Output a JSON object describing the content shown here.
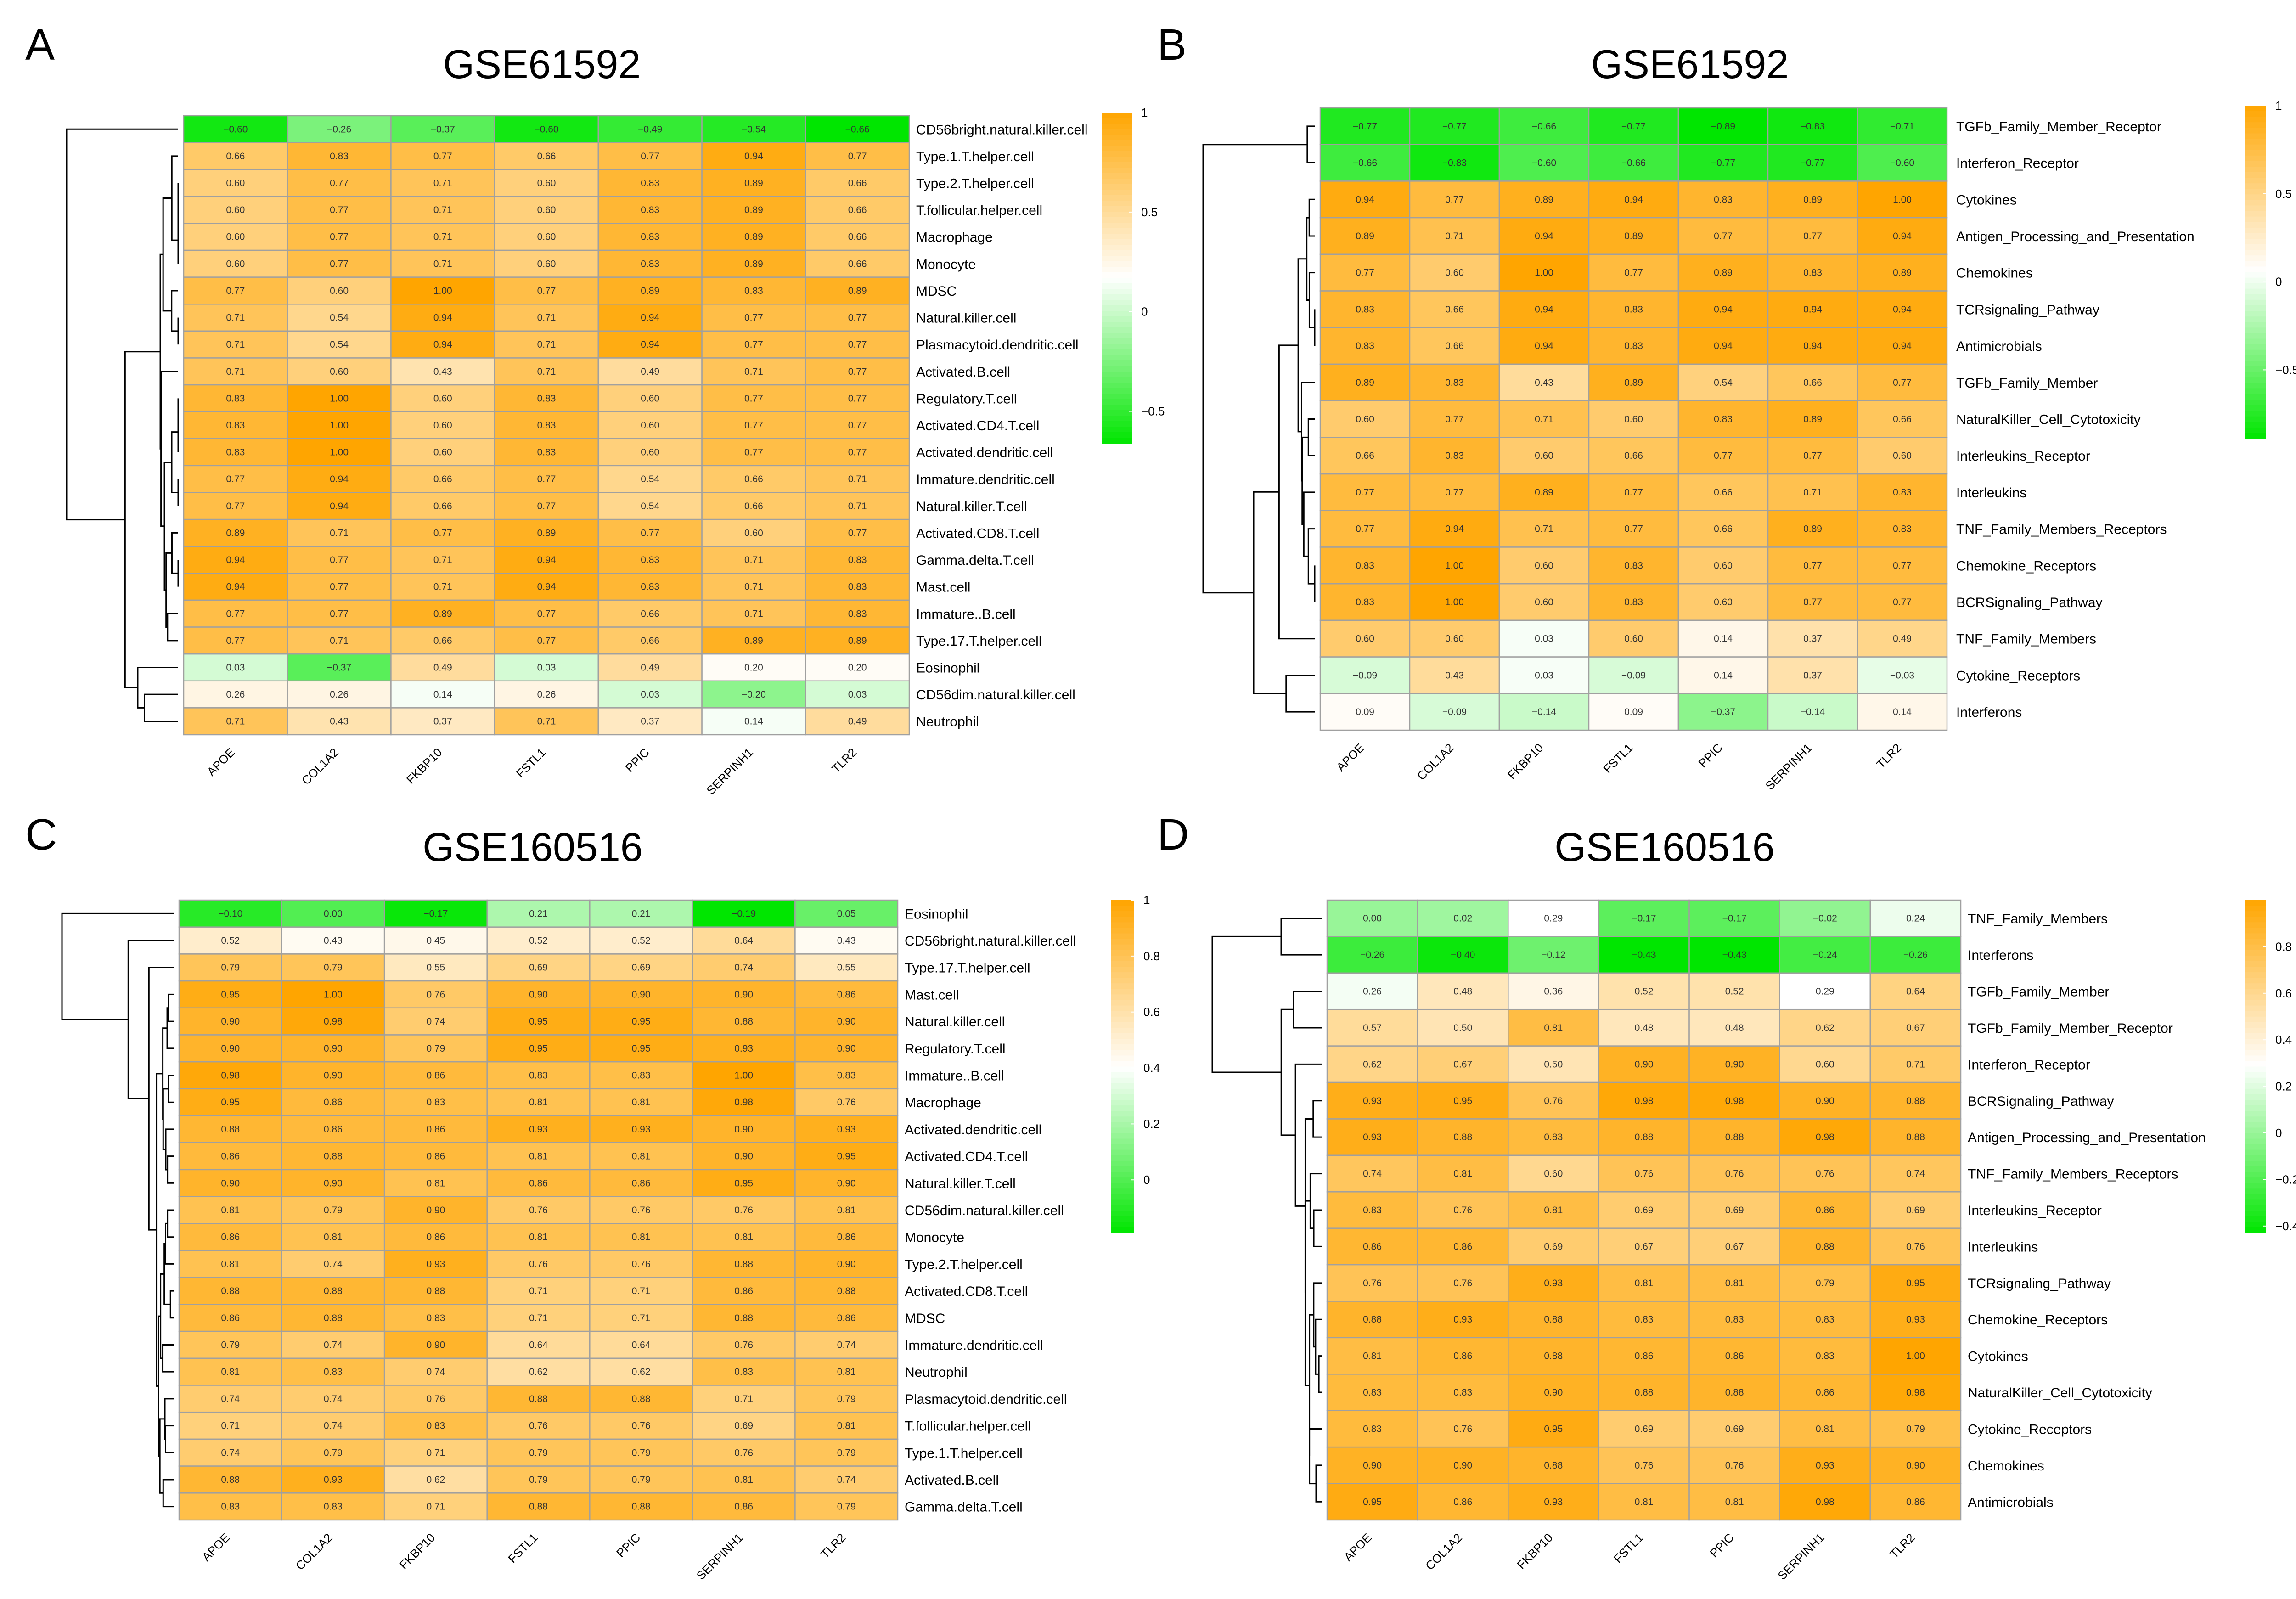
{
  "figure": {
    "panels_order": [
      "A",
      "B",
      "C",
      "D"
    ]
  },
  "colors": {
    "green": "#00e600",
    "white": "#ffffff",
    "orange": "#ffa500",
    "grid": "#a0a0a0",
    "dendrogram": "#000000",
    "text": "#000000"
  },
  "chart_data": [
    {
      "type": "heatmap",
      "panel_label": "A",
      "title": "GSE61592",
      "columns": [
        "APOE",
        "COL1A2",
        "FKBP10",
        "FSTL1",
        "PPIC",
        "SERPINH1",
        "TLR2"
      ],
      "rows": [
        "CD56bright.natural.killer.cell",
        "Type.1.T.helper.cell",
        "Type.2.T.helper.cell",
        "T.follicular.helper.cell",
        "Macrophage",
        "Monocyte",
        "MDSC",
        "Natural.killer.cell",
        "Plasmacytoid.dendritic.cell",
        "Activated.B.cell",
        "Regulatory.T.cell",
        "Activated.CD4.T.cell",
        "Activated.dendritic.cell",
        "Immature.dendritic.cell",
        "Natural.killer.T.cell",
        "Activated.CD8.T.cell",
        "Gamma.delta.T.cell",
        "Mast.cell",
        "Immature..B.cell",
        "Type.17.T.helper.cell",
        "Eosinophil",
        "CD56dim.natural.killer.cell",
        "Neutrophil"
      ],
      "values": [
        [
          -0.6,
          -0.26,
          -0.37,
          -0.6,
          -0.49,
          -0.54,
          -0.66
        ],
        [
          0.66,
          0.83,
          0.77,
          0.66,
          0.77,
          0.94,
          0.77
        ],
        [
          0.6,
          0.77,
          0.71,
          0.6,
          0.83,
          0.89,
          0.66
        ],
        [
          0.6,
          0.77,
          0.71,
          0.6,
          0.83,
          0.89,
          0.66
        ],
        [
          0.6,
          0.77,
          0.71,
          0.6,
          0.83,
          0.89,
          0.66
        ],
        [
          0.6,
          0.77,
          0.71,
          0.6,
          0.83,
          0.89,
          0.66
        ],
        [
          0.77,
          0.6,
          1.0,
          0.77,
          0.89,
          0.83,
          0.89
        ],
        [
          0.71,
          0.54,
          0.94,
          0.71,
          0.94,
          0.77,
          0.77
        ],
        [
          0.71,
          0.54,
          0.94,
          0.71,
          0.94,
          0.77,
          0.77
        ],
        [
          0.71,
          0.6,
          0.43,
          0.71,
          0.49,
          0.71,
          0.77
        ],
        [
          0.83,
          1.0,
          0.6,
          0.83,
          0.6,
          0.77,
          0.77
        ],
        [
          0.83,
          1.0,
          0.6,
          0.83,
          0.6,
          0.77,
          0.77
        ],
        [
          0.83,
          1.0,
          0.6,
          0.83,
          0.6,
          0.77,
          0.77
        ],
        [
          0.77,
          0.94,
          0.66,
          0.77,
          0.54,
          0.66,
          0.71
        ],
        [
          0.77,
          0.94,
          0.66,
          0.77,
          0.54,
          0.66,
          0.71
        ],
        [
          0.89,
          0.71,
          0.77,
          0.89,
          0.77,
          0.6,
          0.77
        ],
        [
          0.94,
          0.77,
          0.71,
          0.94,
          0.83,
          0.71,
          0.83
        ],
        [
          0.94,
          0.77,
          0.71,
          0.94,
          0.83,
          0.71,
          0.83
        ],
        [
          0.77,
          0.77,
          0.89,
          0.77,
          0.66,
          0.71,
          0.83
        ],
        [
          0.77,
          0.71,
          0.66,
          0.77,
          0.66,
          0.89,
          0.89
        ],
        [
          0.03,
          -0.37,
          0.49,
          0.03,
          0.49,
          0.2,
          0.2
        ],
        [
          0.26,
          0.26,
          0.14,
          0.26,
          0.03,
          -0.2,
          0.03
        ],
        [
          0.71,
          0.43,
          0.37,
          0.71,
          0.37,
          0.14,
          0.49
        ]
      ],
      "color_scale": {
        "min": -0.66,
        "mid": 0.17,
        "max": 1.0
      },
      "colorbar": {
        "ticks": [
          1,
          0.5,
          0,
          -0.5
        ],
        "labels": [
          "1",
          "0.5",
          "0",
          "−0.5"
        ]
      }
    },
    {
      "type": "heatmap",
      "panel_label": "B",
      "title": "GSE61592",
      "columns": [
        "APOE",
        "COL1A2",
        "FKBP10",
        "FSTL1",
        "PPIC",
        "SERPINH1",
        "TLR2"
      ],
      "rows": [
        "TGFb_Family_Member_Receptor",
        "Interferon_Receptor",
        "Cytokines",
        "Antigen_Processing_and_Presentation",
        "Chemokines",
        "TCRsignaling_Pathway",
        "Antimicrobials",
        "TGFb_Family_Member",
        "NaturalKiller_Cell_Cytotoxicity",
        "Interleukins_Receptor",
        "Interleukins",
        "TNF_Family_Members_Receptors",
        "Chemokine_Receptors",
        "BCRSignaling_Pathway",
        "TNF_Family_Members",
        "Cytokine_Receptors",
        "Interferons"
      ],
      "values": [
        [
          -0.77,
          -0.77,
          -0.66,
          -0.77,
          -0.89,
          -0.83,
          -0.71
        ],
        [
          -0.66,
          -0.83,
          -0.6,
          -0.66,
          -0.77,
          -0.77,
          -0.6
        ],
        [
          0.94,
          0.77,
          0.89,
          0.94,
          0.83,
          0.89,
          1.0
        ],
        [
          0.89,
          0.71,
          0.94,
          0.89,
          0.77,
          0.77,
          0.94
        ],
        [
          0.77,
          0.6,
          1.0,
          0.77,
          0.89,
          0.83,
          0.89
        ],
        [
          0.83,
          0.66,
          0.94,
          0.83,
          0.94,
          0.94,
          0.94
        ],
        [
          0.83,
          0.66,
          0.94,
          0.83,
          0.94,
          0.94,
          0.94
        ],
        [
          0.89,
          0.83,
          0.43,
          0.89,
          0.54,
          0.66,
          0.77
        ],
        [
          0.6,
          0.77,
          0.71,
          0.6,
          0.83,
          0.89,
          0.66
        ],
        [
          0.66,
          0.83,
          0.6,
          0.66,
          0.77,
          0.77,
          0.6
        ],
        [
          0.77,
          0.77,
          0.89,
          0.77,
          0.66,
          0.71,
          0.83
        ],
        [
          0.77,
          0.94,
          0.71,
          0.77,
          0.66,
          0.89,
          0.83
        ],
        [
          0.83,
          1.0,
          0.6,
          0.83,
          0.6,
          0.77,
          0.77
        ],
        [
          0.83,
          1.0,
          0.6,
          0.83,
          0.6,
          0.77,
          0.77
        ],
        [
          0.6,
          0.6,
          0.03,
          0.6,
          0.14,
          0.37,
          0.49
        ],
        [
          -0.09,
          0.43,
          0.03,
          -0.09,
          0.14,
          0.37,
          -0.03
        ],
        [
          0.09,
          -0.09,
          -0.14,
          0.09,
          -0.37,
          -0.14,
          0.14
        ]
      ],
      "color_scale": {
        "min": -0.89,
        "mid": 0.06,
        "max": 1.0
      },
      "colorbar": {
        "ticks": [
          1,
          0.5,
          0,
          -0.5
        ],
        "labels": [
          "1",
          "0.5",
          "0",
          "−0.5"
        ]
      }
    },
    {
      "type": "heatmap",
      "panel_label": "C",
      "title": "GSE160516",
      "columns": [
        "APOE",
        "COL1A2",
        "FKBP10",
        "FSTL1",
        "PPIC",
        "SERPINH1",
        "TLR2"
      ],
      "rows": [
        "Eosinophil",
        "CD56bright.natural.killer.cell",
        "Type.17.T.helper.cell",
        "Mast.cell",
        "Natural.killer.cell",
        "Regulatory.T.cell",
        "Immature..B.cell",
        "Macrophage",
        "Activated.dendritic.cell",
        "Activated.CD4.T.cell",
        "Natural.killer.T.cell",
        "CD56dim.natural.killer.cell",
        "Monocyte",
        "Type.2.T.helper.cell",
        "Activated.CD8.T.cell",
        "MDSC",
        "Immature.dendritic.cell",
        "Neutrophil",
        "Plasmacytoid.dendritic.cell",
        "T.follicular.helper.cell",
        "Type.1.T.helper.cell",
        "Activated.B.cell",
        "Gamma.delta.T.cell"
      ],
      "values": [
        [
          -0.1,
          0.0,
          -0.17,
          0.21,
          0.21,
          -0.19,
          0.05
        ],
        [
          0.52,
          0.43,
          0.45,
          0.52,
          0.52,
          0.64,
          0.43
        ],
        [
          0.79,
          0.79,
          0.55,
          0.69,
          0.69,
          0.74,
          0.55
        ],
        [
          0.95,
          1.0,
          0.76,
          0.9,
          0.9,
          0.9,
          0.86
        ],
        [
          0.9,
          0.98,
          0.74,
          0.95,
          0.95,
          0.88,
          0.9
        ],
        [
          0.9,
          0.9,
          0.79,
          0.95,
          0.95,
          0.93,
          0.9
        ],
        [
          0.98,
          0.9,
          0.86,
          0.83,
          0.83,
          1.0,
          0.83
        ],
        [
          0.95,
          0.86,
          0.83,
          0.81,
          0.81,
          0.98,
          0.76
        ],
        [
          0.88,
          0.86,
          0.86,
          0.93,
          0.93,
          0.9,
          0.93
        ],
        [
          0.86,
          0.88,
          0.86,
          0.81,
          0.81,
          0.9,
          0.95
        ],
        [
          0.9,
          0.9,
          0.81,
          0.86,
          0.86,
          0.95,
          0.9
        ],
        [
          0.81,
          0.79,
          0.9,
          0.76,
          0.76,
          0.76,
          0.81
        ],
        [
          0.86,
          0.81,
          0.86,
          0.81,
          0.81,
          0.81,
          0.86
        ],
        [
          0.81,
          0.74,
          0.93,
          0.76,
          0.76,
          0.88,
          0.9
        ],
        [
          0.88,
          0.88,
          0.88,
          0.71,
          0.71,
          0.86,
          0.88
        ],
        [
          0.86,
          0.88,
          0.83,
          0.71,
          0.71,
          0.88,
          0.86
        ],
        [
          0.79,
          0.74,
          0.9,
          0.64,
          0.64,
          0.76,
          0.74
        ],
        [
          0.81,
          0.83,
          0.74,
          0.62,
          0.62,
          0.83,
          0.81
        ],
        [
          0.74,
          0.74,
          0.76,
          0.88,
          0.88,
          0.71,
          0.79
        ],
        [
          0.71,
          0.74,
          0.83,
          0.76,
          0.76,
          0.69,
          0.81
        ],
        [
          0.74,
          0.79,
          0.71,
          0.79,
          0.79,
          0.76,
          0.79
        ],
        [
          0.88,
          0.93,
          0.62,
          0.79,
          0.79,
          0.81,
          0.74
        ],
        [
          0.83,
          0.83,
          0.71,
          0.88,
          0.88,
          0.86,
          0.79
        ]
      ],
      "color_scale": {
        "min": -0.19,
        "mid": 0.4,
        "max": 1.0
      },
      "colorbar": {
        "ticks": [
          1,
          0.8,
          0.6,
          0.4,
          0.2,
          0
        ],
        "labels": [
          "1",
          "0.8",
          "0.6",
          "0.4",
          "0.2",
          "0"
        ]
      }
    },
    {
      "type": "heatmap",
      "panel_label": "D",
      "title": "GSE160516",
      "columns": [
        "APOE",
        "COL1A2",
        "FKBP10",
        "FSTL1",
        "PPIC",
        "SERPINH1",
        "TLR2"
      ],
      "rows": [
        "TNF_Family_Members",
        "Interferons",
        "TGFb_Family_Member",
        "TGFb_Family_Member_Receptor",
        "Interferon_Receptor",
        "BCRSignaling_Pathway",
        "Antigen_Processing_and_Presentation",
        "TNF_Family_Members_Receptors",
        "Interleukins_Receptor",
        "Interleukins",
        "TCRsignaling_Pathway",
        "Chemokine_Receptors",
        "Cytokines",
        "NaturalKiller_Cell_Cytotoxicity",
        "Cytokine_Receptors",
        "Chemokines",
        "Antimicrobials"
      ],
      "values": [
        [
          0.0,
          0.02,
          0.29,
          -0.17,
          -0.17,
          -0.02,
          0.24
        ],
        [
          -0.26,
          -0.4,
          -0.12,
          -0.43,
          -0.43,
          -0.24,
          -0.26
        ],
        [
          0.26,
          0.48,
          0.36,
          0.52,
          0.52,
          0.29,
          0.64
        ],
        [
          0.57,
          0.5,
          0.81,
          0.48,
          0.48,
          0.62,
          0.67
        ],
        [
          0.62,
          0.67,
          0.5,
          0.9,
          0.9,
          0.6,
          0.71
        ],
        [
          0.93,
          0.95,
          0.76,
          0.98,
          0.98,
          0.9,
          0.88
        ],
        [
          0.93,
          0.88,
          0.83,
          0.88,
          0.88,
          0.98,
          0.88
        ],
        [
          0.74,
          0.81,
          0.6,
          0.76,
          0.76,
          0.76,
          0.74
        ],
        [
          0.83,
          0.76,
          0.81,
          0.69,
          0.69,
          0.86,
          0.69
        ],
        [
          0.86,
          0.86,
          0.69,
          0.67,
          0.67,
          0.88,
          0.76
        ],
        [
          0.76,
          0.76,
          0.93,
          0.81,
          0.81,
          0.79,
          0.95
        ],
        [
          0.88,
          0.93,
          0.88,
          0.83,
          0.83,
          0.83,
          0.93
        ],
        [
          0.81,
          0.86,
          0.88,
          0.86,
          0.86,
          0.83,
          1.0
        ],
        [
          0.83,
          0.83,
          0.9,
          0.88,
          0.88,
          0.86,
          0.98
        ],
        [
          0.83,
          0.76,
          0.95,
          0.69,
          0.69,
          0.81,
          0.79
        ],
        [
          0.9,
          0.9,
          0.88,
          0.76,
          0.76,
          0.93,
          0.9
        ],
        [
          0.95,
          0.86,
          0.93,
          0.81,
          0.81,
          0.98,
          0.86
        ]
      ],
      "color_scale": {
        "min": -0.43,
        "mid": 0.29,
        "max": 1.0
      },
      "colorbar": {
        "ticks": [
          0.8,
          0.6,
          0.4,
          0.2,
          0,
          -0.2,
          -0.4
        ],
        "labels": [
          "0.8",
          "0.6",
          "0.4",
          "0.2",
          "0",
          "−0.2",
          "−0.4"
        ]
      }
    }
  ]
}
